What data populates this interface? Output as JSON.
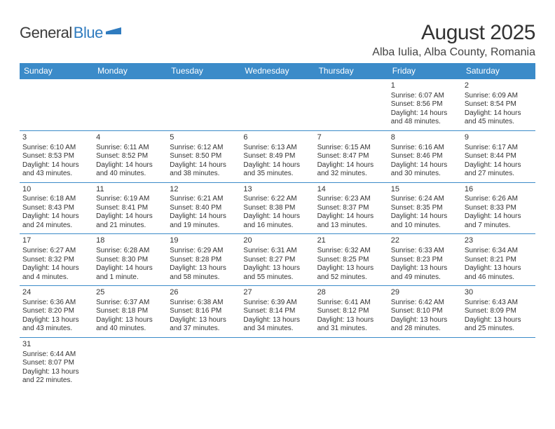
{
  "logo": {
    "text1": "General",
    "text2": "Blue"
  },
  "title": "August 2025",
  "location": "Alba Iulia, Alba County, Romania",
  "colors": {
    "header_bg": "#3b8bc9",
    "header_text": "#ffffff",
    "border": "#3b8bc9",
    "logo_blue": "#2f7bbf",
    "body_text": "#333333"
  },
  "weekdays": [
    "Sunday",
    "Monday",
    "Tuesday",
    "Wednesday",
    "Thursday",
    "Friday",
    "Saturday"
  ],
  "weeks": [
    [
      null,
      null,
      null,
      null,
      null,
      {
        "n": "1",
        "rise": "Sunrise: 6:07 AM",
        "set": "Sunset: 8:56 PM",
        "day1": "Daylight: 14 hours",
        "day2": "and 48 minutes."
      },
      {
        "n": "2",
        "rise": "Sunrise: 6:09 AM",
        "set": "Sunset: 8:54 PM",
        "day1": "Daylight: 14 hours",
        "day2": "and 45 minutes."
      }
    ],
    [
      {
        "n": "3",
        "rise": "Sunrise: 6:10 AM",
        "set": "Sunset: 8:53 PM",
        "day1": "Daylight: 14 hours",
        "day2": "and 43 minutes."
      },
      {
        "n": "4",
        "rise": "Sunrise: 6:11 AM",
        "set": "Sunset: 8:52 PM",
        "day1": "Daylight: 14 hours",
        "day2": "and 40 minutes."
      },
      {
        "n": "5",
        "rise": "Sunrise: 6:12 AM",
        "set": "Sunset: 8:50 PM",
        "day1": "Daylight: 14 hours",
        "day2": "and 38 minutes."
      },
      {
        "n": "6",
        "rise": "Sunrise: 6:13 AM",
        "set": "Sunset: 8:49 PM",
        "day1": "Daylight: 14 hours",
        "day2": "and 35 minutes."
      },
      {
        "n": "7",
        "rise": "Sunrise: 6:15 AM",
        "set": "Sunset: 8:47 PM",
        "day1": "Daylight: 14 hours",
        "day2": "and 32 minutes."
      },
      {
        "n": "8",
        "rise": "Sunrise: 6:16 AM",
        "set": "Sunset: 8:46 PM",
        "day1": "Daylight: 14 hours",
        "day2": "and 30 minutes."
      },
      {
        "n": "9",
        "rise": "Sunrise: 6:17 AM",
        "set": "Sunset: 8:44 PM",
        "day1": "Daylight: 14 hours",
        "day2": "and 27 minutes."
      }
    ],
    [
      {
        "n": "10",
        "rise": "Sunrise: 6:18 AM",
        "set": "Sunset: 8:43 PM",
        "day1": "Daylight: 14 hours",
        "day2": "and 24 minutes."
      },
      {
        "n": "11",
        "rise": "Sunrise: 6:19 AM",
        "set": "Sunset: 8:41 PM",
        "day1": "Daylight: 14 hours",
        "day2": "and 21 minutes."
      },
      {
        "n": "12",
        "rise": "Sunrise: 6:21 AM",
        "set": "Sunset: 8:40 PM",
        "day1": "Daylight: 14 hours",
        "day2": "and 19 minutes."
      },
      {
        "n": "13",
        "rise": "Sunrise: 6:22 AM",
        "set": "Sunset: 8:38 PM",
        "day1": "Daylight: 14 hours",
        "day2": "and 16 minutes."
      },
      {
        "n": "14",
        "rise": "Sunrise: 6:23 AM",
        "set": "Sunset: 8:37 PM",
        "day1": "Daylight: 14 hours",
        "day2": "and 13 minutes."
      },
      {
        "n": "15",
        "rise": "Sunrise: 6:24 AM",
        "set": "Sunset: 8:35 PM",
        "day1": "Daylight: 14 hours",
        "day2": "and 10 minutes."
      },
      {
        "n": "16",
        "rise": "Sunrise: 6:26 AM",
        "set": "Sunset: 8:33 PM",
        "day1": "Daylight: 14 hours",
        "day2": "and 7 minutes."
      }
    ],
    [
      {
        "n": "17",
        "rise": "Sunrise: 6:27 AM",
        "set": "Sunset: 8:32 PM",
        "day1": "Daylight: 14 hours",
        "day2": "and 4 minutes."
      },
      {
        "n": "18",
        "rise": "Sunrise: 6:28 AM",
        "set": "Sunset: 8:30 PM",
        "day1": "Daylight: 14 hours",
        "day2": "and 1 minute."
      },
      {
        "n": "19",
        "rise": "Sunrise: 6:29 AM",
        "set": "Sunset: 8:28 PM",
        "day1": "Daylight: 13 hours",
        "day2": "and 58 minutes."
      },
      {
        "n": "20",
        "rise": "Sunrise: 6:31 AM",
        "set": "Sunset: 8:27 PM",
        "day1": "Daylight: 13 hours",
        "day2": "and 55 minutes."
      },
      {
        "n": "21",
        "rise": "Sunrise: 6:32 AM",
        "set": "Sunset: 8:25 PM",
        "day1": "Daylight: 13 hours",
        "day2": "and 52 minutes."
      },
      {
        "n": "22",
        "rise": "Sunrise: 6:33 AM",
        "set": "Sunset: 8:23 PM",
        "day1": "Daylight: 13 hours",
        "day2": "and 49 minutes."
      },
      {
        "n": "23",
        "rise": "Sunrise: 6:34 AM",
        "set": "Sunset: 8:21 PM",
        "day1": "Daylight: 13 hours",
        "day2": "and 46 minutes."
      }
    ],
    [
      {
        "n": "24",
        "rise": "Sunrise: 6:36 AM",
        "set": "Sunset: 8:20 PM",
        "day1": "Daylight: 13 hours",
        "day2": "and 43 minutes."
      },
      {
        "n": "25",
        "rise": "Sunrise: 6:37 AM",
        "set": "Sunset: 8:18 PM",
        "day1": "Daylight: 13 hours",
        "day2": "and 40 minutes."
      },
      {
        "n": "26",
        "rise": "Sunrise: 6:38 AM",
        "set": "Sunset: 8:16 PM",
        "day1": "Daylight: 13 hours",
        "day2": "and 37 minutes."
      },
      {
        "n": "27",
        "rise": "Sunrise: 6:39 AM",
        "set": "Sunset: 8:14 PM",
        "day1": "Daylight: 13 hours",
        "day2": "and 34 minutes."
      },
      {
        "n": "28",
        "rise": "Sunrise: 6:41 AM",
        "set": "Sunset: 8:12 PM",
        "day1": "Daylight: 13 hours",
        "day2": "and 31 minutes."
      },
      {
        "n": "29",
        "rise": "Sunrise: 6:42 AM",
        "set": "Sunset: 8:10 PM",
        "day1": "Daylight: 13 hours",
        "day2": "and 28 minutes."
      },
      {
        "n": "30",
        "rise": "Sunrise: 6:43 AM",
        "set": "Sunset: 8:09 PM",
        "day1": "Daylight: 13 hours",
        "day2": "and 25 minutes."
      }
    ],
    [
      {
        "n": "31",
        "rise": "Sunrise: 6:44 AM",
        "set": "Sunset: 8:07 PM",
        "day1": "Daylight: 13 hours",
        "day2": "and 22 minutes."
      },
      null,
      null,
      null,
      null,
      null,
      null
    ]
  ]
}
